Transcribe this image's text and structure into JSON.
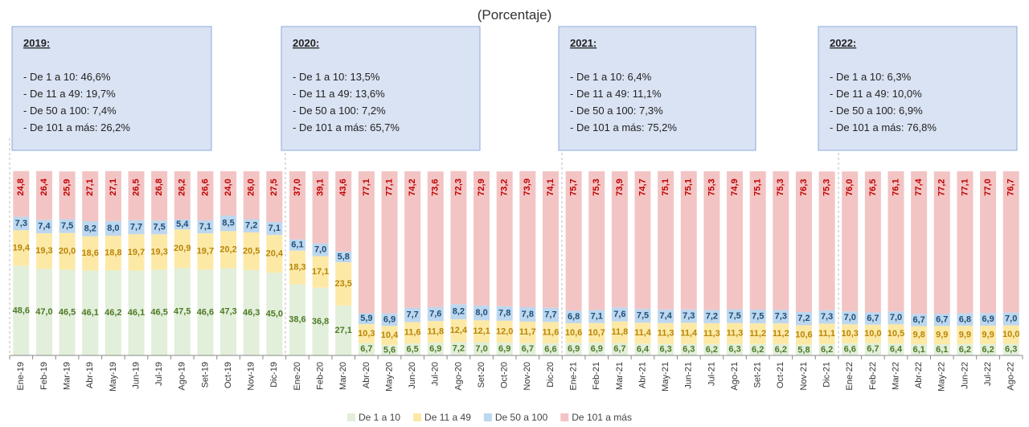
{
  "chart_data": {
    "type": "stacked_bar",
    "subtitle": "(Porcentaje)",
    "categories": [
      "Ene-19",
      "Feb-19",
      "Mar-19",
      "Abr-19",
      "May-19",
      "Jun-19",
      "Jul-19",
      "Ago-19",
      "Set-19",
      "Oct-19",
      "Nov-19",
      "Dic-19",
      "Ene-20",
      "Feb-20",
      "Mar-20",
      "Abr-20",
      "May-20",
      "Jun-20",
      "Jul-20",
      "Ago-20",
      "Set-20",
      "Oct-20",
      "Nov-20",
      "Dic-20",
      "Ene-21",
      "Feb-21",
      "Mar-21",
      "Abr-21",
      "May-21",
      "Jun-21",
      "Jul-21",
      "Ago-21",
      "Set-21",
      "Oct-21",
      "Nov-21",
      "Dic-21",
      "Ene-22",
      "Feb-22",
      "Mar-22",
      "Abr-22",
      "May-22",
      "Jun-22",
      "Jul-22",
      "Ago-22"
    ],
    "ylim": [
      0,
      100
    ],
    "series": [
      {
        "name": "De 1 a 10",
        "color": "#e2efda",
        "label_color": "#4e7a27",
        "values": [
          48.6,
          47.0,
          46.5,
          46.1,
          46.2,
          46.1,
          46.5,
          47.5,
          46.6,
          47.3,
          46.3,
          45.0,
          38.6,
          36.8,
          27.1,
          6.7,
          5.6,
          6.5,
          6.9,
          7.2,
          7.0,
          6.9,
          6.7,
          6.6,
          6.9,
          6.9,
          6.7,
          6.4,
          6.3,
          6.3,
          6.2,
          6.3,
          6.2,
          6.2,
          5.8,
          6.2,
          6.6,
          6.7,
          6.4,
          6.1,
          6.1,
          6.2,
          6.2,
          6.3
        ],
        "value_labels": [
          "48,6",
          "47,0",
          "46,5",
          "46,1",
          "46,2",
          "46,1",
          "46,5",
          "47,5",
          "46,6",
          "47,3",
          "46,3",
          "45,0",
          "38,6",
          "36,8",
          "27,1",
          "6,7",
          "5,6",
          "6,5",
          "6,9",
          "7,2",
          "7,0",
          "6,9",
          "6,7",
          "6,6",
          "6,9",
          "6,9",
          "6,7",
          "6,4",
          "6,3",
          "6,3",
          "6,2",
          "6,3",
          "6,2",
          "6,2",
          "5,8",
          "6,2",
          "6,6",
          "6,7",
          "6,4",
          "6,1",
          "6,1",
          "6,2",
          "6,2",
          "6,3"
        ]
      },
      {
        "name": "De 11 a 49",
        "color": "#fde9a6",
        "label_color": "#b7860b",
        "values": [
          19.4,
          19.3,
          20.0,
          18.6,
          18.8,
          19.7,
          19.3,
          20.9,
          19.7,
          20.2,
          20.5,
          20.4,
          18.3,
          17.1,
          23.5,
          10.3,
          10.4,
          11.6,
          11.8,
          12.4,
          12.1,
          12.0,
          11.7,
          11.6,
          10.6,
          10.7,
          11.8,
          11.4,
          11.3,
          11.4,
          11.3,
          11.3,
          11.2,
          11.2,
          10.6,
          11.1,
          10.3,
          10.0,
          10.5,
          9.8,
          9.9,
          9.9,
          9.9,
          10.0
        ],
        "value_labels": [
          "19,4",
          "19,3",
          "20,0",
          "18,6",
          "18,8",
          "19,7",
          "19,3",
          "20,9",
          "19,7",
          "20,2",
          "20,5",
          "20,4",
          "18,3",
          "17,1",
          "23,5",
          "10,3",
          "10,4",
          "11,6",
          "11,8",
          "12,4",
          "12,1",
          "12,0",
          "11,7",
          "11,6",
          "10,6",
          "10,7",
          "11,8",
          "11,4",
          "11,3",
          "11,4",
          "11,3",
          "11,3",
          "11,2",
          "11,2",
          "10,6",
          "11,1",
          "10,3",
          "10,0",
          "10,5",
          "9,8",
          "9,9",
          "9,9",
          "9,9",
          "10,0"
        ]
      },
      {
        "name": "De 50 a 100",
        "color": "#bdd7ee",
        "label_color": "#1f4e79",
        "values": [
          7.3,
          7.4,
          7.5,
          8.2,
          8.0,
          7.7,
          7.5,
          5.4,
          7.1,
          8.5,
          7.2,
          7.1,
          6.1,
          7.0,
          5.8,
          5.9,
          6.9,
          7.7,
          7.6,
          8.2,
          8.0,
          7.8,
          7.8,
          7.7,
          6.8,
          7.1,
          7.6,
          7.5,
          7.4,
          7.3,
          7.2,
          7.5,
          7.5,
          7.3,
          7.2,
          7.3,
          7.0,
          6.7,
          7.0,
          6.7,
          6.7,
          6.8,
          6.9,
          7.0
        ],
        "value_labels": [
          "7,3",
          "7,4",
          "7,5",
          "8,2",
          "8,0",
          "7,7",
          "7,5",
          "5,4",
          "7,1",
          "8,5",
          "7,2",
          "7,1",
          "6,1",
          "7,0",
          "5,8",
          "5,9",
          "6,9",
          "7,7",
          "7,6",
          "8,2",
          "8,0",
          "7,8",
          "7,8",
          "7,7",
          "6,8",
          "7,1",
          "7,6",
          "7,5",
          "7,4",
          "7,3",
          "7,2",
          "7,5",
          "7,5",
          "7,3",
          "7,2",
          "7,3",
          "7,0",
          "6,7",
          "7,0",
          "6,7",
          "6,7",
          "6,8",
          "6,9",
          "7,0"
        ]
      },
      {
        "name": "De 101 a más",
        "color": "#f3c4c4",
        "label_color": "#c00000",
        "values": [
          24.8,
          26.4,
          25.9,
          27.1,
          27.1,
          26.5,
          26.8,
          26.2,
          26.6,
          24.0,
          26.0,
          27.5,
          37.0,
          39.1,
          43.6,
          77.1,
          77.1,
          74.2,
          73.6,
          72.3,
          72.9,
          73.2,
          73.9,
          74.1,
          75.7,
          75.3,
          73.9,
          74.7,
          75.1,
          75.1,
          75.3,
          74.9,
          75.1,
          75.3,
          76.3,
          75.3,
          76.0,
          76.5,
          76.1,
          77.4,
          77.2,
          77.1,
          77.0,
          76.7
        ],
        "value_labels": [
          "24,8",
          "26,4",
          "25,9",
          "27,1",
          "27,1",
          "26,5",
          "26,8",
          "26,2",
          "26,6",
          "24,0",
          "26,0",
          "27,5",
          "37,0",
          "39,1",
          "43,6",
          "77,1",
          "77,1",
          "74,2",
          "73,6",
          "72,3",
          "72,9",
          "73,2",
          "73,9",
          "74,1",
          "75,7",
          "75,3",
          "73,9",
          "74,7",
          "75,1",
          "75,1",
          "75,3",
          "74,9",
          "75,1",
          "75,3",
          "76,3",
          "75,3",
          "76,0",
          "76,5",
          "76,1",
          "77,4",
          "77,2",
          "77,1",
          "77,0",
          "76,7"
        ]
      }
    ],
    "annotations": [
      {
        "title": "2019:",
        "lines": [
          "- De 1 a 10: 46,6%",
          "- De 11 a 49: 19,7%",
          "- De 50 a 100: 7,4%",
          "- De 101 a más: 26,2%"
        ]
      },
      {
        "title": "2020:",
        "lines": [
          "- De 1 a 10: 13,5%",
          "- De 11 a 49: 13,6%",
          "- De 50 a 100: 7,2%",
          "- De 101 a más: 65,7%"
        ]
      },
      {
        "title": "2021:",
        "lines": [
          "- De 1 a 10: 6,4%",
          "- De 11 a 49: 11,1%",
          "- De 50 a 100: 7,3%",
          "- De 101 a más: 75,2%"
        ]
      },
      {
        "title": "2022:",
        "lines": [
          "- De 1 a 10: 6,3%",
          "- De 11 a 49: 10,0%",
          "- De 50 a 100: 6,9%",
          "- De 101 a más: 76,8%"
        ]
      }
    ]
  }
}
